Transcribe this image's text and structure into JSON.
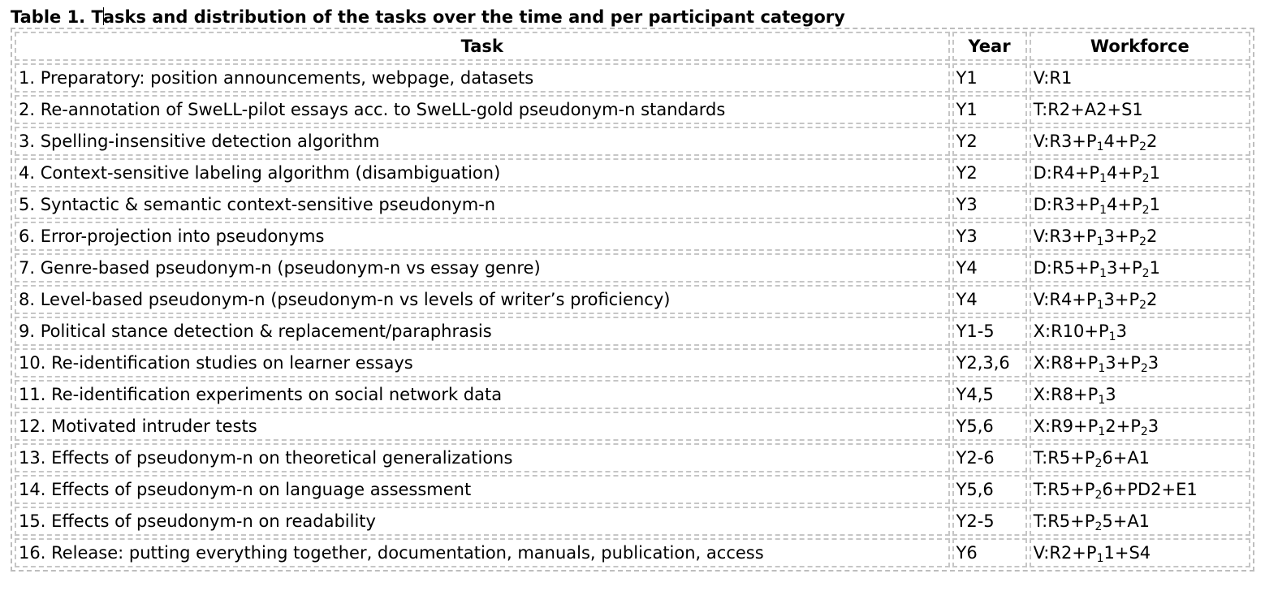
{
  "caption": {
    "first_letter": "T",
    "rest": "asks and distribution of the tasks over the time and per participant category",
    "label": "Table 1."
  },
  "table": {
    "headers": [
      "Task",
      "Year",
      "Workforce"
    ],
    "rows": [
      {
        "task": "1. Preparatory: position announcements, webpage, datasets",
        "year": "Y1",
        "workforce": [
          [
            "V:R1",
            ""
          ]
        ]
      },
      {
        "task": "2. Re-annotation of SweLL-pilot essays acc. to SweLL-gold pseudonym-n standards",
        "year": "Y1",
        "workforce": [
          [
            "T:R2+A2+S1",
            ""
          ]
        ]
      },
      {
        "task": "3. Spelling-insensitive detection algorithm",
        "year": "Y2",
        "workforce": [
          [
            "V:R3+P",
            "1"
          ],
          [
            "4+P",
            "2"
          ],
          [
            "2",
            ""
          ]
        ]
      },
      {
        "task": "4. Context-sensitive labeling algorithm (disambiguation)",
        "year": "Y2",
        "workforce": [
          [
            "D:R4+P",
            "1"
          ],
          [
            "4+P",
            "2"
          ],
          [
            "1",
            ""
          ]
        ]
      },
      {
        "task": "5. Syntactic & semantic context-sensitive pseudonym-n",
        "year": "Y3",
        "workforce": [
          [
            "D:R3+P",
            "1"
          ],
          [
            "4+P",
            "2"
          ],
          [
            "1",
            ""
          ]
        ]
      },
      {
        "task": "6. Error-projection into pseudonyms",
        "year": "Y3",
        "workforce": [
          [
            "V:R3+P",
            "1"
          ],
          [
            "3+P",
            "2"
          ],
          [
            "2",
            ""
          ]
        ]
      },
      {
        "task": "7. Genre-based pseudonym-n (pseudonym-n vs essay genre)",
        "year": "Y4",
        "workforce": [
          [
            "D:R5+P",
            "1"
          ],
          [
            "3+P",
            "2"
          ],
          [
            "1",
            ""
          ]
        ]
      },
      {
        "task": "8. Level-based pseudonym-n (pseudonym-n vs levels of writer’s proficiency)",
        "year": "Y4",
        "workforce": [
          [
            "V:R4+P",
            "1"
          ],
          [
            "3+P",
            "2"
          ],
          [
            "2",
            ""
          ]
        ]
      },
      {
        "task": "9. Political stance detection & replacement/paraphrasis",
        "year": "Y1-5",
        "workforce": [
          [
            "X:R10+P",
            "1"
          ],
          [
            "3",
            ""
          ]
        ]
      },
      {
        "task": "10. Re-identification studies on learner essays",
        "year": "Y2,3,6",
        "workforce": [
          [
            "X:R8+P",
            "1"
          ],
          [
            "3+P",
            "2"
          ],
          [
            "3",
            ""
          ]
        ]
      },
      {
        "task": "11. Re-identification experiments on social network data",
        "year": "Y4,5",
        "workforce": [
          [
            "X:R8+P",
            "1"
          ],
          [
            "3",
            ""
          ]
        ]
      },
      {
        "task": "12. Motivated intruder tests",
        "year": "Y5,6",
        "workforce": [
          [
            "X:R9+P",
            "1"
          ],
          [
            "2+P",
            "2"
          ],
          [
            "3",
            ""
          ]
        ]
      },
      {
        "task": "13. Effects of pseudonym-n on theoretical generalizations",
        "year": "Y2-6",
        "workforce": [
          [
            "T:R5+P",
            "2"
          ],
          [
            "6+A1",
            ""
          ]
        ]
      },
      {
        "task": "14. Effects of pseudonym-n on language assessment",
        "year": "Y5,6",
        "workforce": [
          [
            "T:R5+P",
            "2"
          ],
          [
            "6+PD2+E1",
            ""
          ]
        ]
      },
      {
        "task": "15. Effects of pseudonym-n on readability",
        "year": "Y2-5",
        "workforce": [
          [
            "T:R5+P",
            "2"
          ],
          [
            "5+A1",
            ""
          ]
        ]
      },
      {
        "task": "16. Release: putting everything together, documentation, manuals, publication, access",
        "year": "Y6",
        "workforce": [
          [
            "V:R2+P",
            "1"
          ],
          [
            "1+S4",
            ""
          ]
        ]
      }
    ]
  }
}
